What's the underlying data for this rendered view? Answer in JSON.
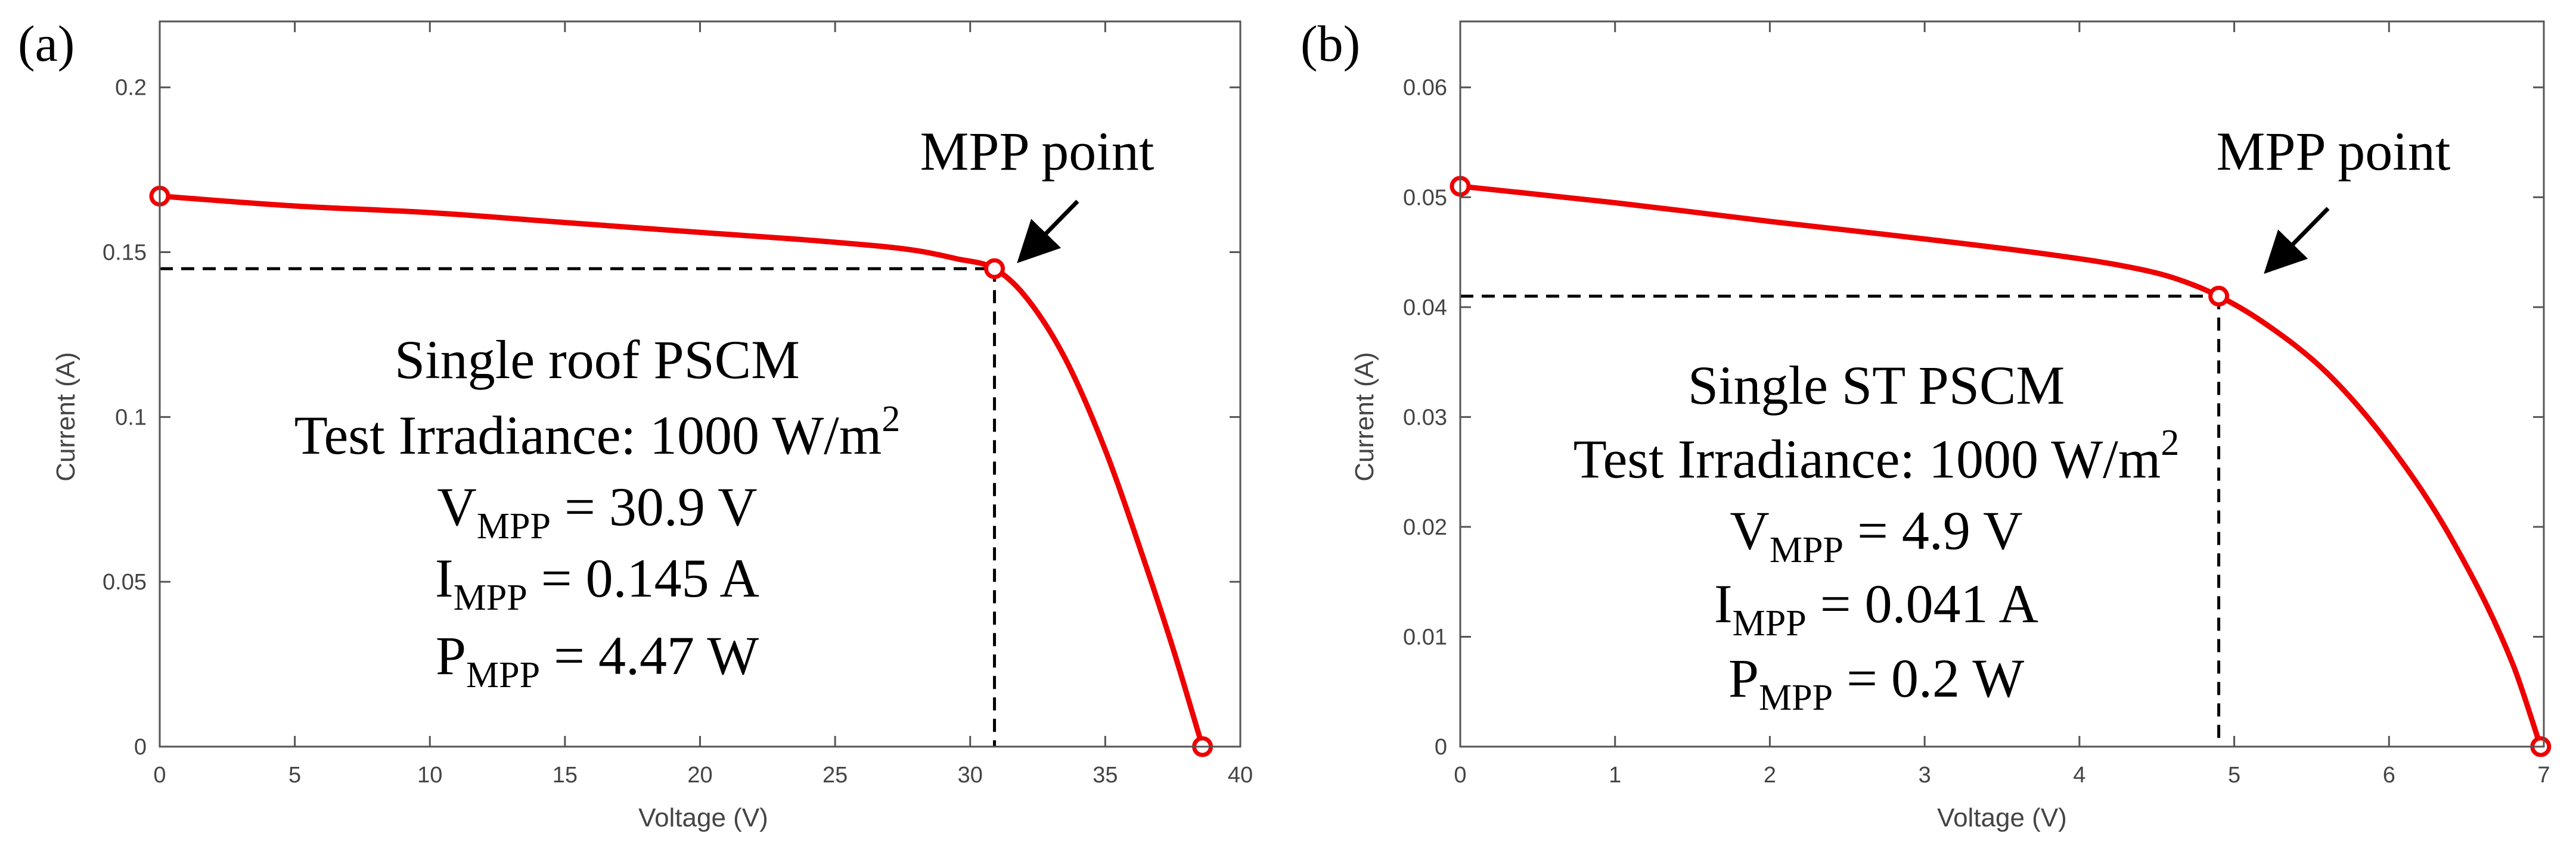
{
  "chart_data": [
    {
      "type": "line",
      "panel_label": "(a)",
      "xlabel": "Voltage (V)",
      "ylabel": "Current (A)",
      "xlim": [
        0,
        40
      ],
      "ylim": [
        0,
        0.22
      ],
      "x_ticks": [
        0,
        5,
        10,
        15,
        20,
        25,
        30,
        35,
        40
      ],
      "x_tick_labels": [
        "0",
        "5",
        "10",
        "15",
        "20",
        "25",
        "30",
        "35",
        "40"
      ],
      "y_ticks": [
        0,
        0.05,
        0.1,
        0.15,
        0.2
      ],
      "y_tick_labels": [
        "0",
        "0.05",
        "0.1",
        "0.15",
        "0.2"
      ],
      "series": [
        {
          "name": "I-V curve",
          "color": "#ee0000",
          "x": [
            0,
            5,
            10,
            15,
            20,
            25,
            28,
            29.5,
            30.9,
            32,
            33.5,
            35,
            36.5,
            37.5,
            38.6
          ],
          "y": [
            0.167,
            0.164,
            0.162,
            0.159,
            0.156,
            0.153,
            0.1505,
            0.148,
            0.145,
            0.137,
            0.118,
            0.09,
            0.055,
            0.03,
            0
          ]
        }
      ],
      "markers": [
        {
          "name": "short-circuit",
          "x": 0,
          "y": 0.167
        },
        {
          "name": "mpp",
          "x": 30.9,
          "y": 0.145
        },
        {
          "name": "open-circuit",
          "x": 38.6,
          "y": 0
        }
      ],
      "mpp": {
        "x": 30.9,
        "y": 0.145
      },
      "callout": "MPP point",
      "annotation": {
        "line1": "Single roof PSCM",
        "line2": "Test Irradiance:  1000 W/m",
        "line2_sup": "2",
        "v_sym": "V",
        "v_sub": "MPP",
        "v_val": " = 30.9 V",
        "i_sym": "I",
        "i_sub": "MPP",
        "i_val": " = 0.145 A",
        "p_sym": "P",
        "p_sub": "MPP",
        "p_val": " = 4.47 W"
      }
    },
    {
      "type": "line",
      "panel_label": "(b)",
      "xlabel": "Voltage (V)",
      "ylabel": "Current (A)",
      "xlim": [
        0,
        7
      ],
      "ylim": [
        0,
        0.066
      ],
      "x_ticks": [
        0,
        1,
        2,
        3,
        4,
        5,
        6,
        7
      ],
      "x_tick_labels": [
        "0",
        "1",
        "2",
        "3",
        "4",
        "5",
        "6",
        "7"
      ],
      "y_ticks": [
        0,
        0.01,
        0.02,
        0.03,
        0.04,
        0.05,
        0.06
      ],
      "y_tick_labels": [
        "0",
        "0.01",
        "0.02",
        "0.03",
        "0.04",
        "0.05",
        "0.06"
      ],
      "series": [
        {
          "name": "I-V curve",
          "color": "#ee0000",
          "x": [
            0,
            1,
            2,
            3,
            3.8,
            4.3,
            4.6,
            4.9,
            5.2,
            5.6,
            6.0,
            6.4,
            6.8,
            6.98
          ],
          "y": [
            0.051,
            0.0495,
            0.0478,
            0.0462,
            0.0448,
            0.0437,
            0.0427,
            0.041,
            0.0385,
            0.034,
            0.0275,
            0.019,
            0.0075,
            0
          ]
        }
      ],
      "markers": [
        {
          "name": "short-circuit",
          "x": 0,
          "y": 0.051
        },
        {
          "name": "mpp",
          "x": 4.9,
          "y": 0.041
        },
        {
          "name": "open-circuit",
          "x": 6.98,
          "y": 0
        }
      ],
      "mpp": {
        "x": 4.9,
        "y": 0.041
      },
      "callout": "MPP point",
      "annotation": {
        "line1": "Single ST PSCM",
        "line2": "Test Irradiance:  1000 W/m",
        "line2_sup": "2",
        "v_sym": "V",
        "v_sub": "MPP",
        "v_val": " = 4.9 V",
        "i_sym": "I",
        "i_sub": "MPP",
        "i_val": " = 0.041 A",
        "p_sym": "P",
        "p_sub": "MPP",
        "p_val": " = 0.2 W"
      }
    }
  ]
}
